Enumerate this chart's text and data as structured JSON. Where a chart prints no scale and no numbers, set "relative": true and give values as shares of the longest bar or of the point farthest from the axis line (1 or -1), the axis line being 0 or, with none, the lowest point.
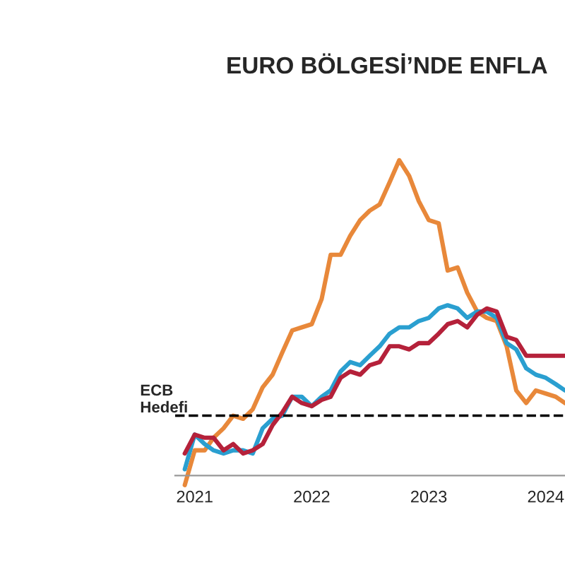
{
  "chart_data": {
    "type": "line",
    "title": "EURO BÖLGESİ’NDE ENFLA",
    "relative": true,
    "x": [
      "2020-12",
      "2021-01",
      "2021-02",
      "2021-03",
      "2021-04",
      "2021-05",
      "2021-06",
      "2021-07",
      "2021-08",
      "2021-09",
      "2021-10",
      "2021-11",
      "2021-12",
      "2022-01",
      "2022-02",
      "2022-03",
      "2022-04",
      "2022-05",
      "2022-06",
      "2022-07",
      "2022-08",
      "2022-09",
      "2022-10",
      "2022-11",
      "2022-12",
      "2023-01",
      "2023-02",
      "2023-03",
      "2023-04",
      "2023-05",
      "2023-06",
      "2023-07",
      "2023-08",
      "2023-09",
      "2023-10",
      "2023-11",
      "2023-12",
      "2024-01",
      "2024-02",
      "2024-03"
    ],
    "xlim": [
      "2020-11",
      "2024-03"
    ],
    "xticks": [
      {
        "value": "2021-01",
        "label": "2021"
      },
      {
        "value": "2022-01",
        "label": "2022"
      },
      {
        "value": "2023-01",
        "label": "2023"
      },
      {
        "value": "2024-01",
        "label": "2024"
      }
    ],
    "series": [
      {
        "color": "#e8883a",
        "values": [
          -0.03,
          0.08,
          0.08,
          0.12,
          0.15,
          0.19,
          0.18,
          0.21,
          0.28,
          0.32,
          0.39,
          0.46,
          0.47,
          0.48,
          0.56,
          0.7,
          0.7,
          0.76,
          0.81,
          0.84,
          0.86,
          0.93,
          1.0,
          0.95,
          0.87,
          0.81,
          0.8,
          0.65,
          0.66,
          0.58,
          0.52,
          0.5,
          0.49,
          0.41,
          0.27,
          0.23,
          0.27,
          0.26,
          0.25,
          0.23
        ]
      },
      {
        "color": "#2a9fd0",
        "values": [
          0.02,
          0.13,
          0.1,
          0.08,
          0.07,
          0.08,
          0.08,
          0.07,
          0.15,
          0.18,
          0.19,
          0.25,
          0.25,
          0.22,
          0.25,
          0.27,
          0.33,
          0.36,
          0.35,
          0.38,
          0.41,
          0.45,
          0.47,
          0.47,
          0.49,
          0.5,
          0.53,
          0.54,
          0.53,
          0.5,
          0.52,
          0.52,
          0.5,
          0.42,
          0.4,
          0.34,
          0.32,
          0.31,
          0.29,
          0.27
        ]
      },
      {
        "color": "#b5213a",
        "values": [
          0.07,
          0.13,
          0.12,
          0.12,
          0.08,
          0.1,
          0.07,
          0.08,
          0.1,
          0.16,
          0.2,
          0.25,
          0.23,
          0.22,
          0.24,
          0.25,
          0.31,
          0.33,
          0.32,
          0.35,
          0.36,
          0.41,
          0.41,
          0.4,
          0.42,
          0.42,
          0.45,
          0.48,
          0.49,
          0.47,
          0.51,
          0.53,
          0.52,
          0.44,
          0.43,
          0.38,
          0.38,
          0.38,
          0.38,
          0.38
        ]
      }
    ],
    "ref_lines": [
      {
        "axis": "y",
        "value": 0.19,
        "label": "ECB\nHedefi",
        "color": "#000000",
        "line_style": "dashed"
      }
    ],
    "line_style": "solid",
    "marker": "none"
  }
}
